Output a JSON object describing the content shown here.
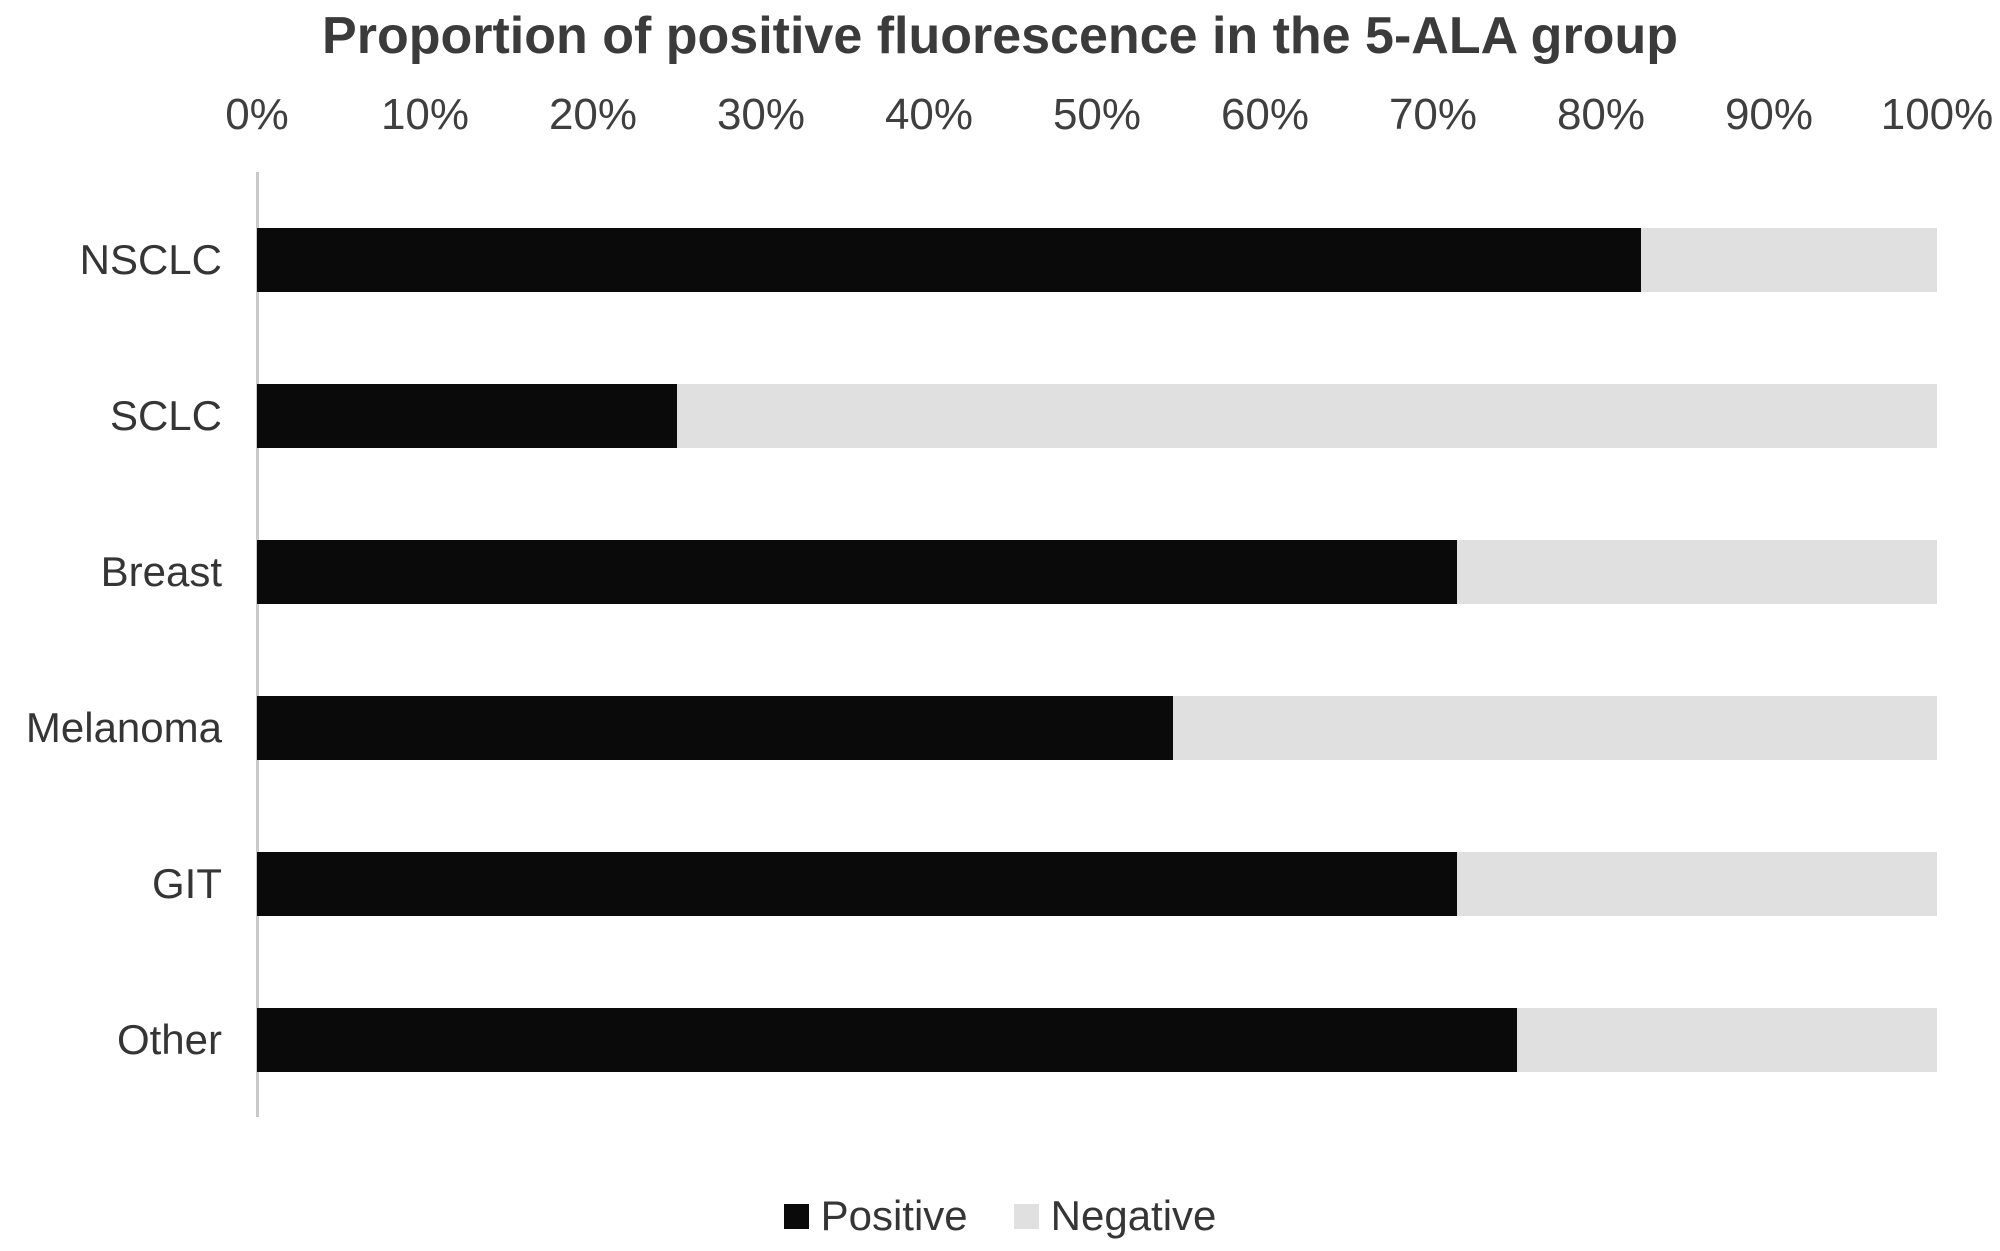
{
  "title": "Proportion of positive fluorescence in the 5-ALA group",
  "chart_data": {
    "type": "bar",
    "orientation": "horizontal",
    "stacked": true,
    "title": "Proportion of positive fluorescence in the 5-ALA group",
    "categories": [
      "NSCLC",
      "SCLC",
      "Breast",
      "Melanoma",
      "GIT",
      "Other"
    ],
    "series": [
      {
        "name": "Positive",
        "color": "#0a0a0a",
        "values": [
          82.4,
          25,
          71.4,
          54.5,
          71.4,
          75
        ]
      },
      {
        "name": "Negative",
        "color": "#e0e0e0",
        "values": [
          17.6,
          75,
          28.6,
          45.5,
          28.6,
          25
        ]
      }
    ],
    "x_ticks": [
      "0%",
      "10%",
      "20%",
      "30%",
      "40%",
      "50%",
      "60%",
      "70%",
      "80%",
      "90%",
      "100%"
    ],
    "xlim": [
      0,
      100
    ],
    "grid": false,
    "legend_position": "bottom"
  },
  "legend": {
    "items": [
      {
        "label": "Positive",
        "color": "#0a0a0a"
      },
      {
        "label": "Negative",
        "color": "#e0e0e0"
      }
    ]
  },
  "colors": {
    "positive": "#0a0a0a",
    "negative": "#e0e0e0",
    "axis_line": "#c9c9c9",
    "text": "#3b3b3b",
    "background": "#ffffff"
  }
}
